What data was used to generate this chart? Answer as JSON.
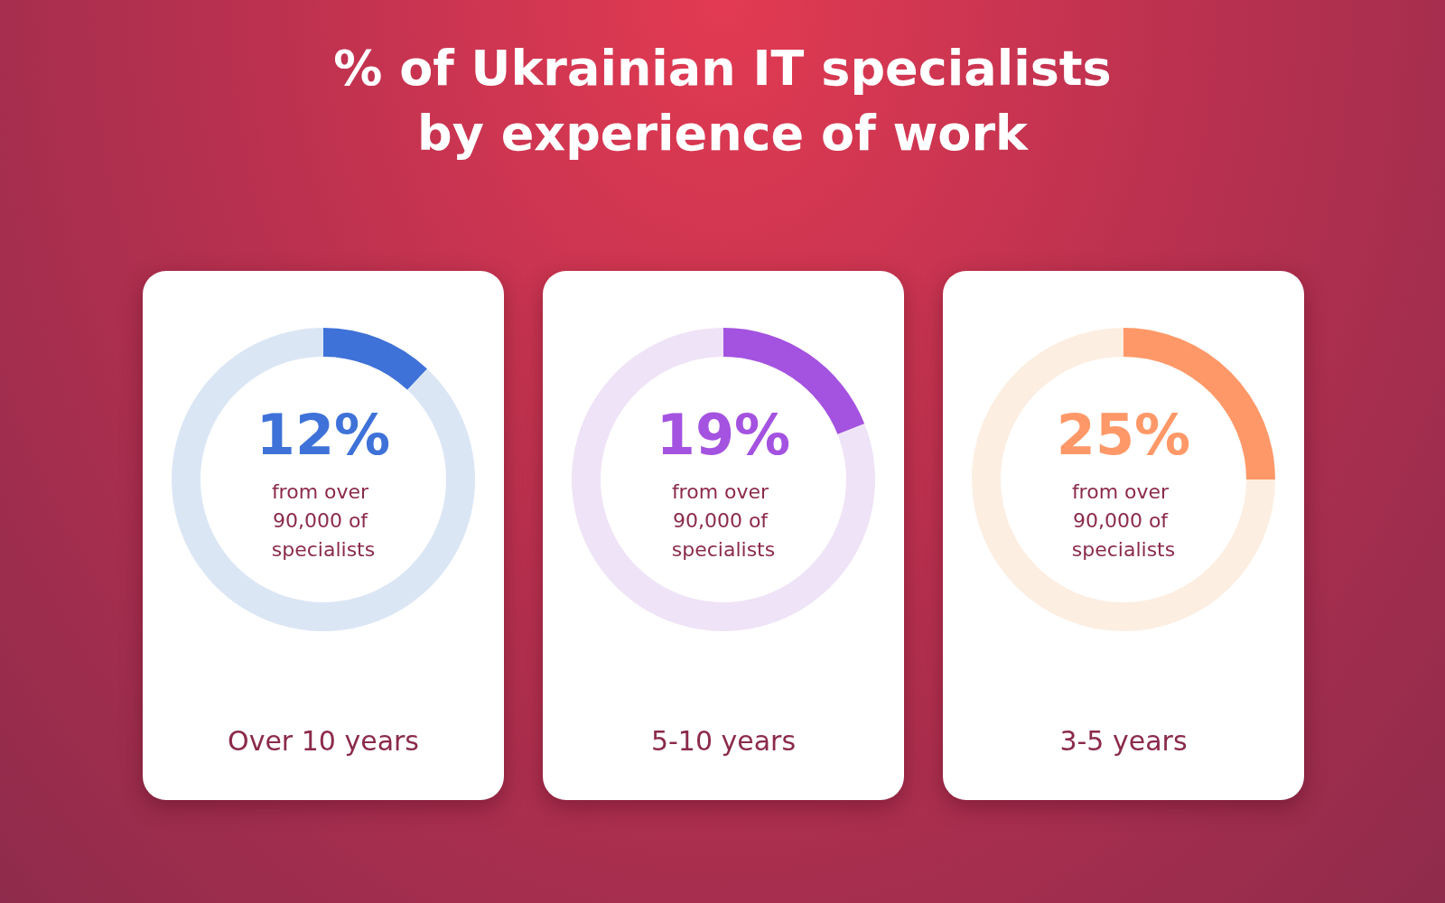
{
  "chart_data": [
    {
      "type": "donut",
      "title": "% of Ukrainian IT specialists by experience of work",
      "xlabel": "Over 10 years",
      "categories": [
        null,
        null
      ],
      "values": [
        12,
        88
      ],
      "colors": [
        "#3f72d8",
        "#dbe6f5"
      ],
      "value_labels": [
        "12%",
        null
      ],
      "annotations": [
        "from over 90,000 of specialists"
      ]
    },
    {
      "type": "donut",
      "xlabel": "5-10 years",
      "categories": [
        null,
        null
      ],
      "values": [
        19,
        81
      ],
      "colors": [
        "#a452e0",
        "#efe3f7"
      ],
      "value_labels": [
        "19%",
        null
      ],
      "annotations": [
        "from over 90,000 of specialists"
      ]
    },
    {
      "type": "donut",
      "xlabel": "3-5 years",
      "categories": [
        null,
        null
      ],
      "values": [
        25,
        75
      ],
      "colors": [
        "#ff9868",
        "#fdeee2"
      ],
      "value_labels": [
        "25%",
        null
      ],
      "annotations": [
        "from over 90,000 of specialists"
      ]
    }
  ]
}
